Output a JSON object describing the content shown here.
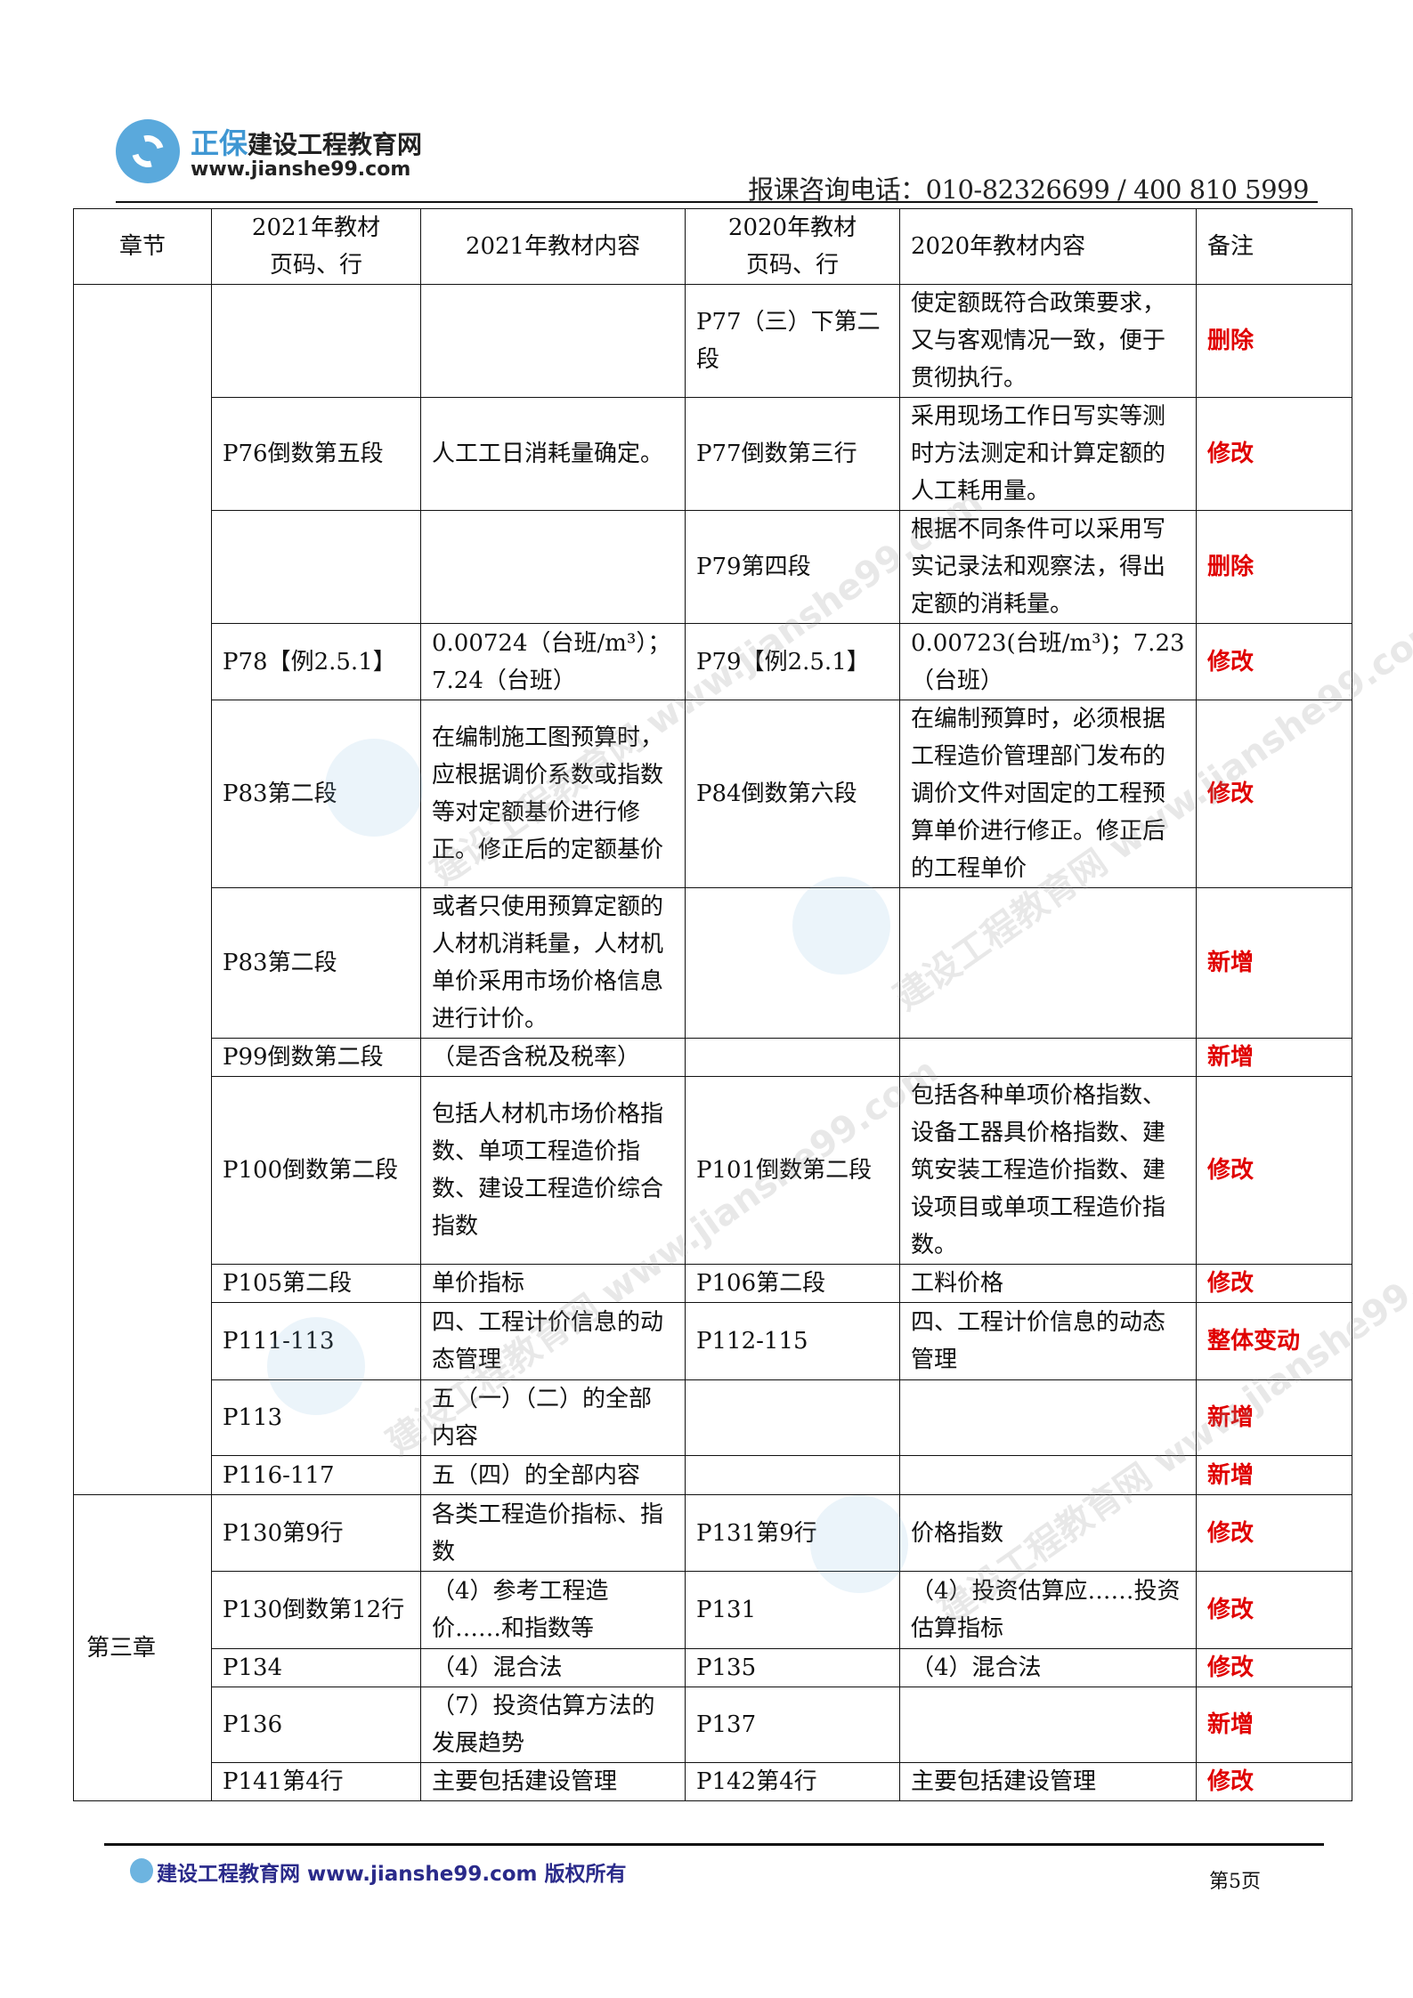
{
  "header": {
    "logo_brand_prefix": "正保",
    "logo_brand": "建设工程教育网",
    "logo_url": "www.jianshe99.com",
    "phone": "报课咨询电话：010-82326699 / 400 810 5999"
  },
  "table": {
    "headers": [
      "章节",
      "2021年教材\n页码、行",
      "2021年教材内容",
      "2020年教材\n页码、行",
      "2020年教材内容",
      "备注"
    ],
    "chapters": [
      "",
      "第三章"
    ],
    "rows": [
      {
        "p21": "",
        "c21": "",
        "p20": "P77（三）下第二段",
        "c20": "使定额既符合政策要求，又与客观情况一致，便于贯彻执行。",
        "note": "删除"
      },
      {
        "p21": "P76倒数第五段",
        "c21": "人工工日消耗量确定。",
        "p20": "P77倒数第三行",
        "c20": "采用现场工作日写实等测时方法测定和计算定额的人工耗用量。",
        "note": "修改"
      },
      {
        "p21": "",
        "c21": "",
        "p20": "P79第四段",
        "c20": "根据不同条件可以采用写实记录法和观察法，得出定额的消耗量。",
        "note": "删除"
      },
      {
        "p21": "P78【例2.5.1】",
        "c21": "0.00724（台班/m³）；7.24（台班）",
        "p20": "P79【例2.5.1】",
        "c20": "0.00723(台班/m³)；7.23（台班）",
        "note": "修改"
      },
      {
        "p21": "P83第二段",
        "c21": "在编制施工图预算时，应根据调价系数或指数等对定额基价进行修正。修正后的定额基价",
        "p20": "P84倒数第六段",
        "c20": "在编制预算时，必须根据工程造价管理部门发布的调价文件对固定的工程预算单价进行修正。修正后的工程单价",
        "note": "修改"
      },
      {
        "p21": "P83第二段",
        "c21": "或者只使用预算定额的人材机消耗量，人材机单价采用市场价格信息进行计价。",
        "p20": "",
        "c20": "",
        "note": "新增"
      },
      {
        "p21": "P99倒数第二段",
        "c21": "（是否含税及税率）",
        "p20": "",
        "c20": "",
        "note": "新增"
      },
      {
        "p21": "P100倒数第二段",
        "c21": "包括人材机市场价格指数、单项工程造价指数、建设工程造价综合指数",
        "p20": "P101倒数第二段",
        "c20": "包括各种单项价格指数、设备工器具价格指数、建筑安装工程造价指数、建设项目或单项工程造价指数。",
        "note": "修改"
      },
      {
        "p21": "P105第二段",
        "c21": "单价指标",
        "p20": "P106第二段",
        "c20": "工料价格",
        "note": "修改"
      },
      {
        "p21": "P111-113",
        "c21": "四、工程计价信息的动态管理",
        "p20": "P112-115",
        "c20": "四、工程计价信息的动态管理",
        "note": "整体变动"
      },
      {
        "p21": "P113",
        "c21": "五（一）（二）的全部内容",
        "p20": "",
        "c20": "",
        "note": "新增"
      },
      {
        "p21": "P116-117",
        "c21": "五（四）的全部内容",
        "p20": "",
        "c20": "",
        "note": "新增"
      },
      {
        "p21": "P130第9行",
        "c21": "各类工程造价指标、指数",
        "p20": "P131第9行",
        "c20": "价格指数",
        "note": "修改"
      },
      {
        "p21": "P130倒数第12行",
        "c21": "（4）参考工程造价……和指数等",
        "p20": "P131",
        "c20": "（4）投资估算应……投资估算指标",
        "note": "修改"
      },
      {
        "p21": "P134",
        "c21": "（4）混合法",
        "p20": "P135",
        "c20": "（4）混合法",
        "note": "修改"
      },
      {
        "p21": "P136",
        "c21": "（7）投资估算方法的发展趋势",
        "p20": "P137",
        "c20": "",
        "note": "新增"
      },
      {
        "p21": "P141第4行",
        "c21": "主要包括建设管理",
        "p20": "P142第4行",
        "c20": "主要包括建设管理",
        "note": "修改"
      }
    ]
  },
  "footer": {
    "text": "建设工程教育网 www.jianshe99.com 版权所有",
    "page": "第5页"
  },
  "watermark": "建设工程教育网 www.jianshe99.com",
  "colors": {
    "note": "#e00000",
    "logo": "#3f97d3"
  }
}
